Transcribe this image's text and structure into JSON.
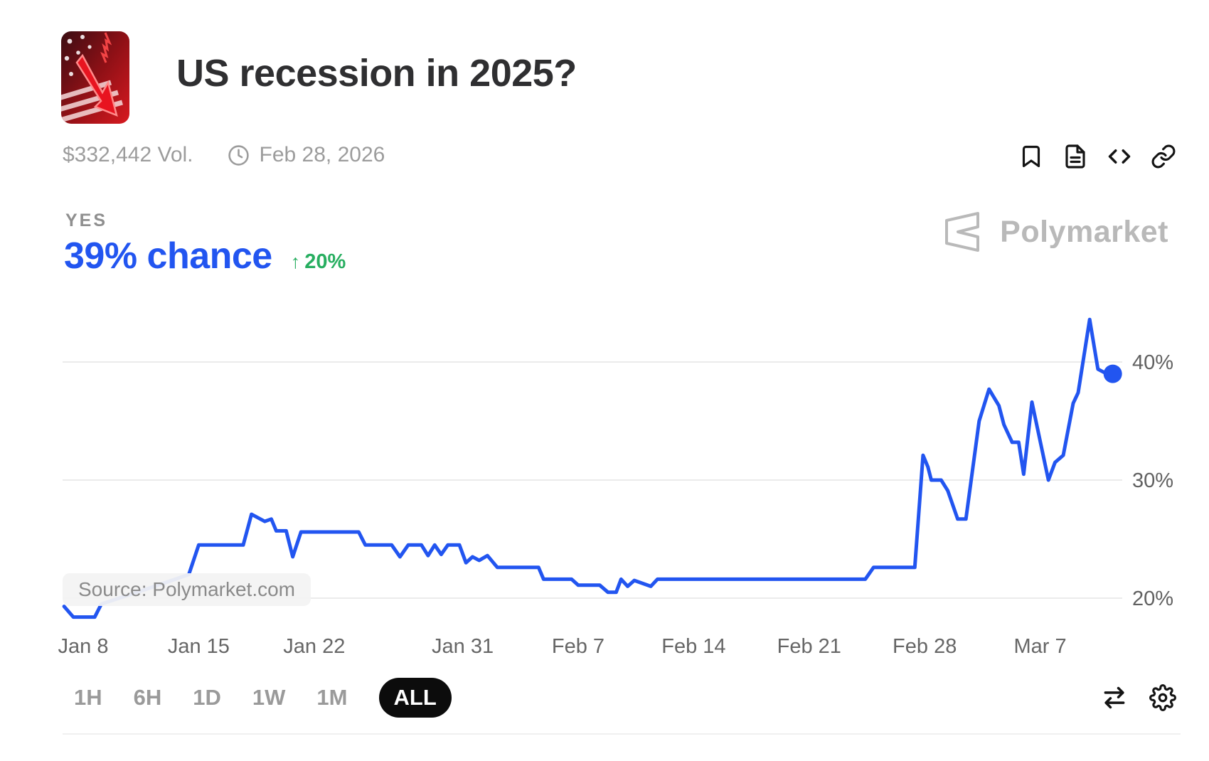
{
  "header": {
    "title": "US recession in 2025?",
    "volume": "$332,442 Vol.",
    "end_date": "Feb 28, 2026"
  },
  "outcome": {
    "label": "YES",
    "chance": "39% chance",
    "change": "20%",
    "change_direction": "up",
    "change_arrow": "↑"
  },
  "brand": {
    "name": "Polymarket"
  },
  "chart_data": {
    "type": "line",
    "title": "US recession in 2025? — Yes price history",
    "x_unit": "days since Jan 8, 2025",
    "ylabel": "chance (%)",
    "ylim": [
      17,
      45
    ],
    "grid": "horizontal",
    "legend": "none",
    "line_color": "#2255f0",
    "grid_color": "#ebebeb",
    "series": [
      {
        "name": "Yes",
        "points": [
          [
            -1.16,
            19.3
          ],
          [
            -0.6,
            18.4
          ],
          [
            0.7,
            18.4
          ],
          [
            1.1,
            19.5
          ],
          [
            3.5,
            20.6
          ],
          [
            6.4,
            22.0
          ],
          [
            7.0,
            24.5
          ],
          [
            9.7,
            24.5
          ],
          [
            10.2,
            27.1
          ],
          [
            11.0,
            26.5
          ],
          [
            11.4,
            26.7
          ],
          [
            11.7,
            25.7
          ],
          [
            12.3,
            25.7
          ],
          [
            12.7,
            23.5
          ],
          [
            13.2,
            25.6
          ],
          [
            16.7,
            25.6
          ],
          [
            17.1,
            24.5
          ],
          [
            18.7,
            24.5
          ],
          [
            19.2,
            23.5
          ],
          [
            19.7,
            24.5
          ],
          [
            20.5,
            24.5
          ],
          [
            20.9,
            23.6
          ],
          [
            21.3,
            24.5
          ],
          [
            21.7,
            23.7
          ],
          [
            22.1,
            24.5
          ],
          [
            22.8,
            24.5
          ],
          [
            23.2,
            23.0
          ],
          [
            23.6,
            23.5
          ],
          [
            24.0,
            23.2
          ],
          [
            24.5,
            23.6
          ],
          [
            25.1,
            22.6
          ],
          [
            27.6,
            22.6
          ],
          [
            27.9,
            21.6
          ],
          [
            29.6,
            21.6
          ],
          [
            30.0,
            21.1
          ],
          [
            31.3,
            21.1
          ],
          [
            31.8,
            20.5
          ],
          [
            32.3,
            20.5
          ],
          [
            32.6,
            21.6
          ],
          [
            33.0,
            21.0
          ],
          [
            33.4,
            21.5
          ],
          [
            34.4,
            21.0
          ],
          [
            34.8,
            21.6
          ],
          [
            47.4,
            21.6
          ],
          [
            47.9,
            22.6
          ],
          [
            50.4,
            22.6
          ],
          [
            50.9,
            32.1
          ],
          [
            51.2,
            31.1
          ],
          [
            51.4,
            30.0
          ],
          [
            52.0,
            30.0
          ],
          [
            52.4,
            29.1
          ],
          [
            53.0,
            26.7
          ],
          [
            53.5,
            26.7
          ],
          [
            54.3,
            35.0
          ],
          [
            54.9,
            37.7
          ],
          [
            55.5,
            36.3
          ],
          [
            55.8,
            34.7
          ],
          [
            56.3,
            33.2
          ],
          [
            56.7,
            33.2
          ],
          [
            57.0,
            30.5
          ],
          [
            57.5,
            36.6
          ],
          [
            58.5,
            30.0
          ],
          [
            58.9,
            31.5
          ],
          [
            59.4,
            32.1
          ],
          [
            60.0,
            36.5
          ],
          [
            60.3,
            37.4
          ],
          [
            61.0,
            43.6
          ],
          [
            61.5,
            39.4
          ],
          [
            61.9,
            39.1
          ],
          [
            62.4,
            39.0
          ]
        ]
      }
    ],
    "endpoint": {
      "x": 62.4,
      "y": 39.0,
      "marker": "dot"
    },
    "x_ticks": [
      {
        "label": "Jan 8",
        "d": 0
      },
      {
        "label": "Jan 15",
        "d": 7
      },
      {
        "label": "Jan 22",
        "d": 14
      },
      {
        "label": "Jan 31",
        "d": 23
      },
      {
        "label": "Feb 7",
        "d": 30
      },
      {
        "label": "Feb 14",
        "d": 37
      },
      {
        "label": "Feb 21",
        "d": 44
      },
      {
        "label": "Feb 28",
        "d": 51
      },
      {
        "label": "Mar 7",
        "d": 58
      }
    ],
    "y_ticks": [
      {
        "label": "20%",
        "value": 20
      },
      {
        "label": "30%",
        "value": 30
      },
      {
        "label": "40%",
        "value": 40
      }
    ],
    "source_label": "Source: Polymarket.com"
  },
  "controls": {
    "ranges": [
      {
        "label": "1H",
        "active": false
      },
      {
        "label": "6H",
        "active": false
      },
      {
        "label": "1D",
        "active": false
      },
      {
        "label": "1W",
        "active": false
      },
      {
        "label": "1M",
        "active": false
      },
      {
        "label": "ALL",
        "active": true
      }
    ]
  },
  "icons": {
    "header_actions": [
      "bookmark-icon",
      "document-icon",
      "embed-code-icon",
      "link-icon"
    ],
    "meta": "clock-icon",
    "chart_tools": [
      "swap-arrows-icon",
      "gear-icon"
    ]
  },
  "colors": {
    "accent_blue": "#2255f0",
    "positive_green": "#27ae60",
    "title_text": "#2f2f31",
    "secondary_text": "#9c9c9c",
    "axis_text": "#616161",
    "brand_gray": "#b9b9b9",
    "active_pill_bg": "#0c0c0c"
  }
}
